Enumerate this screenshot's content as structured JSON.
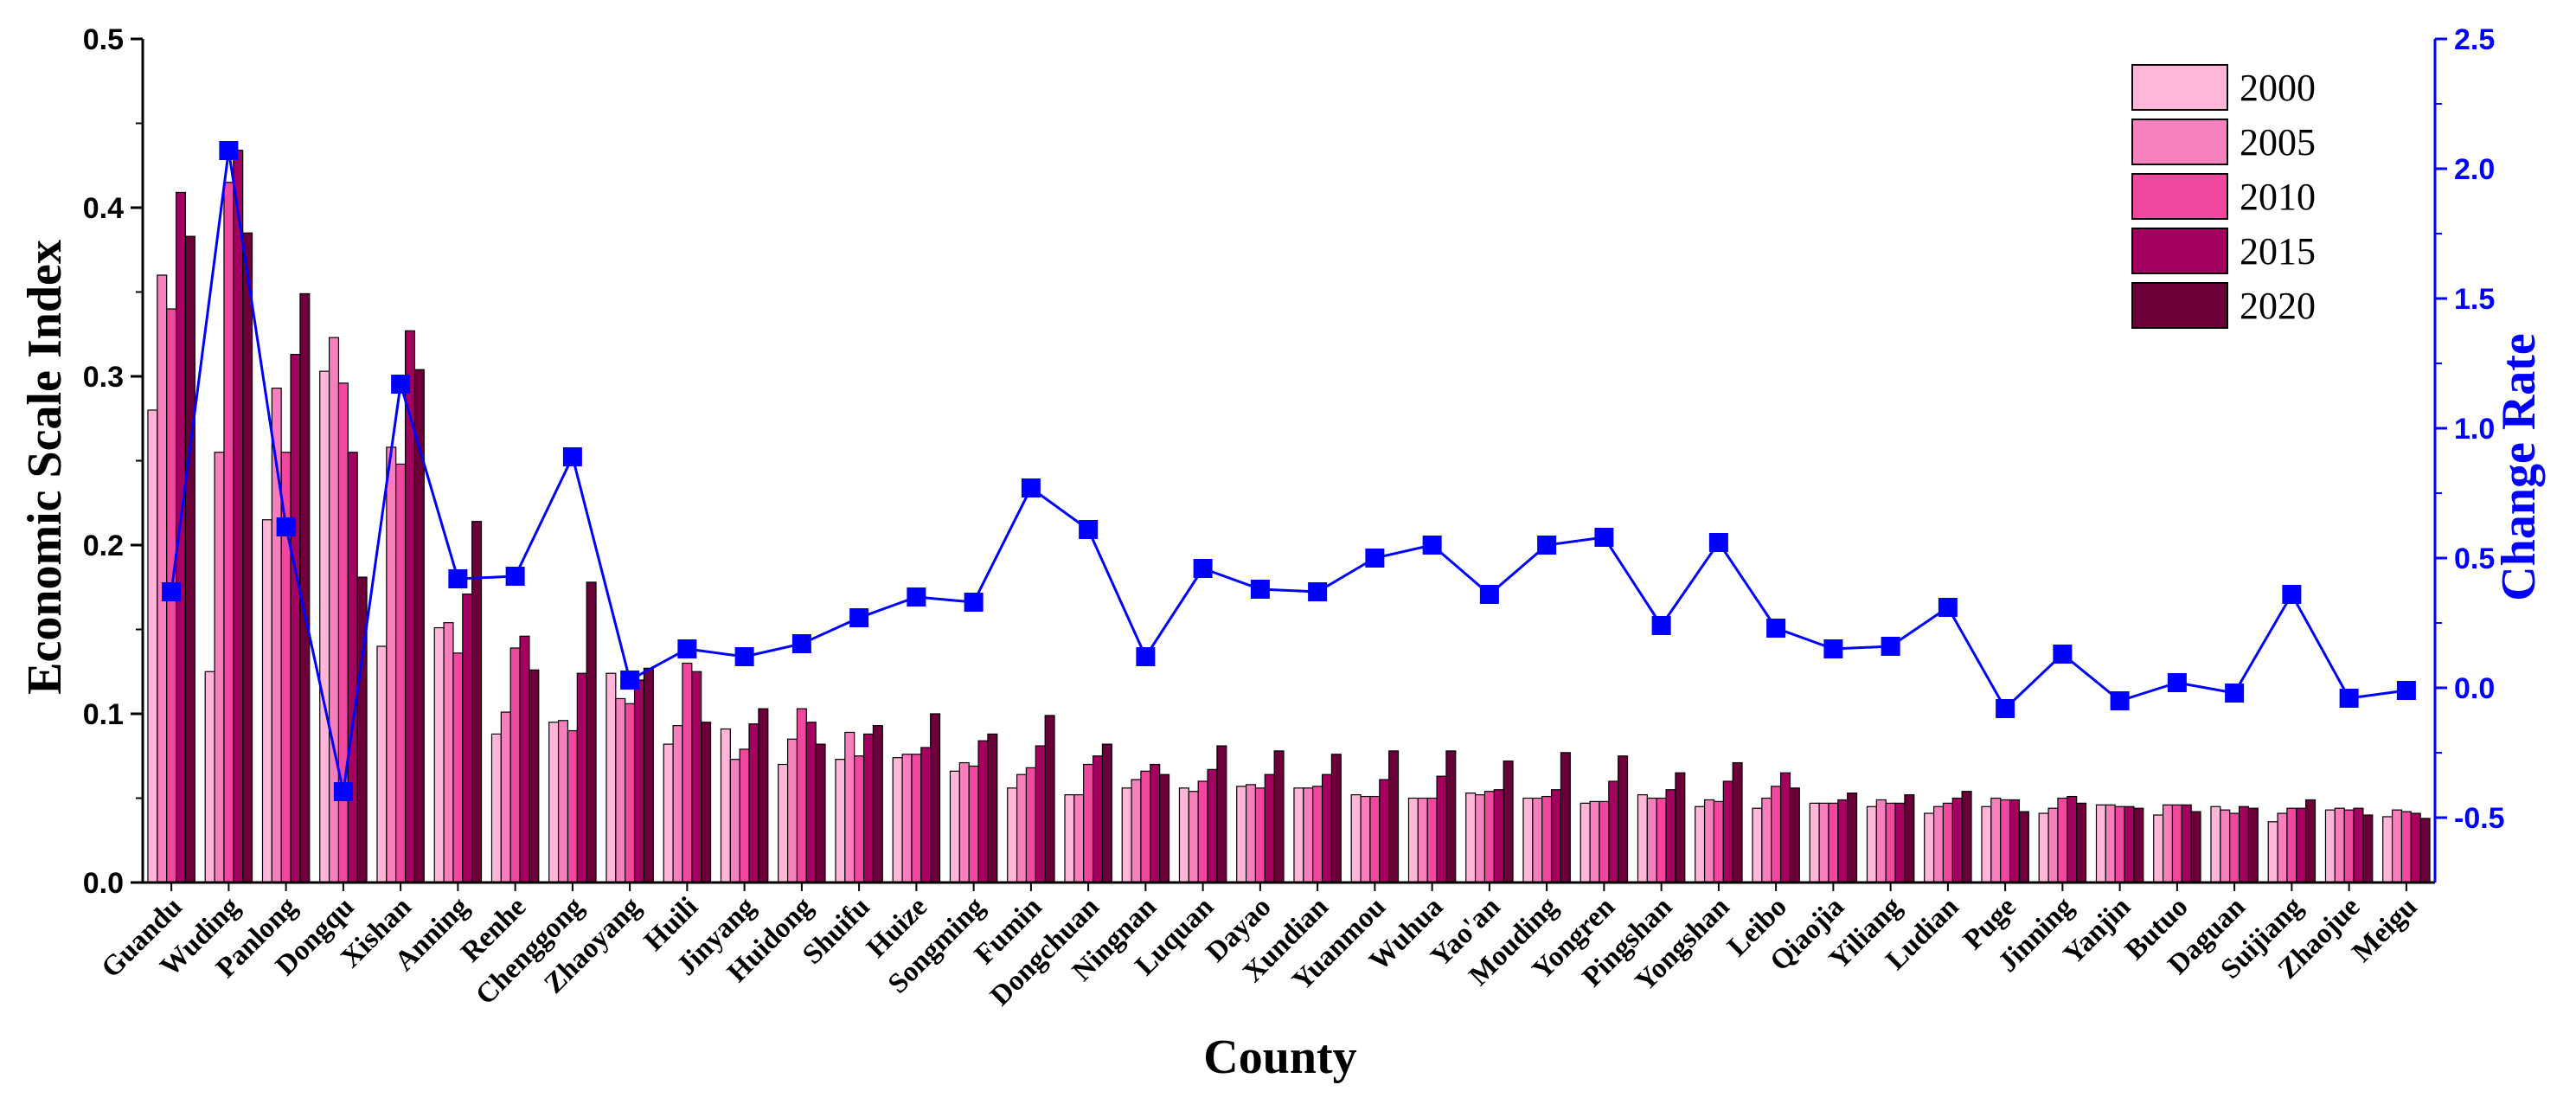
{
  "chart_data": {
    "type": "bar",
    "title": "",
    "xlabel": "County",
    "ylabel": "Economic Scale Index",
    "y2label": "Change Rate",
    "ylim": [
      0,
      0.5
    ],
    "y2lim": [
      -0.75,
      2.5
    ],
    "y_ticks": [
      "0.0",
      "0.1",
      "0.2",
      "0.3",
      "0.4",
      "0.5"
    ],
    "y2_ticks": [
      "-0.5",
      "0.0",
      "0.5",
      "1.0",
      "1.5",
      "2.0",
      "2.5"
    ],
    "legend_position": "top-right",
    "colors": {
      "2000": "#FFB6D9",
      "2005": "#F77FBE",
      "2010": "#F0489F",
      "2015": "#A3005F",
      "2020": "#6B0039",
      "line": "#0000FF",
      "axis_right": "#0000FF"
    },
    "categories": [
      "Guandu",
      "Wuding",
      "Panlong",
      "Dongqu",
      "Xishan",
      "Anning",
      "Renhe",
      "Chenggong",
      "Zhaoyang",
      "Huili",
      "Jinyang",
      "Huidong",
      "Shuifu",
      "Huize",
      "Songming",
      "Fumin",
      "Dongchuan",
      "Ningnan",
      "Luquan",
      "Dayao",
      "Xundian",
      "Yuanmou",
      "Wuhua",
      "Yao'an",
      "Mouding",
      "Yongren",
      "Pingshan",
      "Yongshan",
      "Leibo",
      "Qiaojia",
      "Yiliang",
      "Ludian",
      "Puge",
      "Jinning",
      "Yanjin",
      "Butuo",
      "Daguan",
      "Suijiang",
      "Zhaojue",
      "Meigu"
    ],
    "series": [
      {
        "name": "2000",
        "values": [
          0.28,
          0.125,
          0.215,
          0.303,
          0.14,
          0.151,
          0.088,
          0.095,
          0.124,
          0.082,
          0.091,
          0.07,
          0.073,
          0.074,
          0.066,
          0.056,
          0.052,
          0.056,
          0.056,
          0.057,
          0.056,
          0.052,
          0.05,
          0.053,
          0.05,
          0.047,
          0.052,
          0.045,
          0.044,
          0.047,
          0.045,
          0.041,
          0.045,
          0.041,
          0.046,
          0.04,
          0.045,
          0.036,
          0.043,
          0.039
        ]
      },
      {
        "name": "2005",
        "values": [
          0.36,
          0.255,
          0.293,
          0.323,
          0.258,
          0.154,
          0.101,
          0.096,
          0.109,
          0.093,
          0.073,
          0.085,
          0.089,
          0.076,
          0.071,
          0.064,
          0.052,
          0.061,
          0.054,
          0.058,
          0.056,
          0.051,
          0.05,
          0.052,
          0.05,
          0.048,
          0.05,
          0.049,
          0.05,
          0.047,
          0.049,
          0.045,
          0.05,
          0.044,
          0.046,
          0.046,
          0.043,
          0.041,
          0.044,
          0.043
        ]
      },
      {
        "name": "2010",
        "values": [
          0.34,
          0.415,
          0.255,
          0.296,
          0.248,
          0.136,
          0.139,
          0.09,
          0.106,
          0.13,
          0.079,
          0.103,
          0.075,
          0.076,
          0.069,
          0.068,
          0.07,
          0.066,
          0.06,
          0.056,
          0.057,
          0.051,
          0.05,
          0.054,
          0.051,
          0.048,
          0.05,
          0.048,
          0.057,
          0.047,
          0.047,
          0.047,
          0.049,
          0.05,
          0.045,
          0.046,
          0.041,
          0.044,
          0.043,
          0.042
        ]
      },
      {
        "name": "2015",
        "values": [
          0.409,
          0.434,
          0.313,
          0.255,
          0.327,
          0.171,
          0.146,
          0.124,
          0.12,
          0.125,
          0.094,
          0.095,
          0.088,
          0.08,
          0.084,
          0.081,
          0.075,
          0.07,
          0.067,
          0.064,
          0.064,
          0.061,
          0.063,
          0.055,
          0.055,
          0.06,
          0.055,
          0.06,
          0.065,
          0.049,
          0.047,
          0.05,
          0.049,
          0.051,
          0.045,
          0.046,
          0.045,
          0.044,
          0.044,
          0.041
        ]
      },
      {
        "name": "2020",
        "values": [
          0.383,
          0.385,
          0.349,
          0.181,
          0.304,
          0.214,
          0.126,
          0.178,
          0.127,
          0.095,
          0.103,
          0.082,
          0.093,
          0.1,
          0.088,
          0.099,
          0.082,
          0.064,
          0.081,
          0.078,
          0.076,
          0.078,
          0.078,
          0.072,
          0.077,
          0.075,
          0.065,
          0.071,
          0.056,
          0.053,
          0.052,
          0.054,
          0.042,
          0.047,
          0.044,
          0.042,
          0.044,
          0.049,
          0.04,
          0.038
        ]
      }
    ],
    "line_series": {
      "values": [
        0.37,
        2.07,
        0.62,
        -0.4,
        1.17,
        0.42,
        0.43,
        0.89,
        0.03,
        0.15,
        0.12,
        0.17,
        0.27,
        0.35,
        0.33,
        0.77,
        0.61,
        0.12,
        0.46,
        0.38,
        0.37,
        0.5,
        0.55,
        0.36,
        0.55,
        0.58,
        0.24,
        0.56,
        0.23,
        0.15,
        0.16,
        0.31,
        -0.08,
        0.13,
        -0.05,
        0.02,
        -0.02,
        0.36,
        -0.04,
        -0.01
      ]
    }
  }
}
